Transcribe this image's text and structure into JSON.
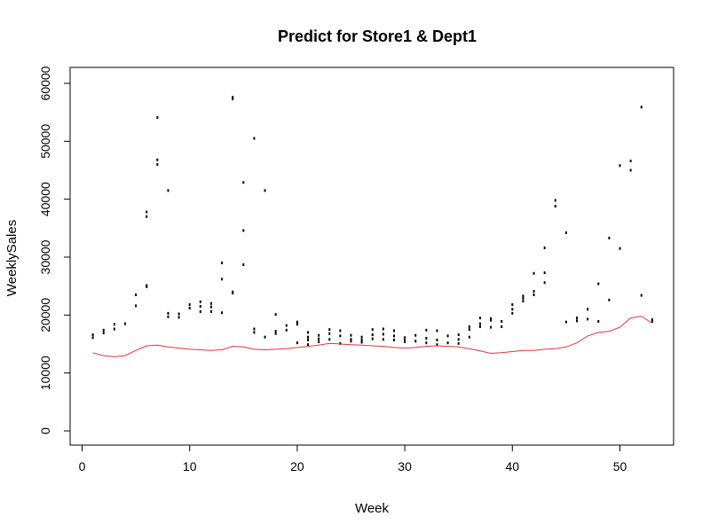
{
  "chart_data": {
    "type": "scatter",
    "title": "Predict for Store1 & Dept1",
    "xlabel": "Week",
    "ylabel": "WeeklySales",
    "xlim": [
      1,
      53
    ],
    "ylim": [
      0,
      60000
    ],
    "x_ticks": [
      0,
      10,
      20,
      30,
      40,
      50
    ],
    "y_ticks": [
      0,
      10000,
      20000,
      30000,
      40000,
      50000,
      60000
    ],
    "grid": false,
    "legend": "none",
    "point_color": "#000000",
    "line_color": "#e8323c",
    "points": [
      [
        1,
        16100
      ],
      [
        1,
        16600
      ],
      [
        2,
        16900
      ],
      [
        2,
        17400
      ],
      [
        3,
        17600
      ],
      [
        3,
        18400
      ],
      [
        4,
        18500
      ],
      [
        5,
        21600
      ],
      [
        5,
        23500
      ],
      [
        6,
        37000
      ],
      [
        6,
        37800
      ],
      [
        6,
        24900
      ],
      [
        6,
        25100
      ],
      [
        7,
        46000
      ],
      [
        7,
        46800
      ],
      [
        7,
        54100
      ],
      [
        8,
        41500
      ],
      [
        8,
        19700
      ],
      [
        8,
        20300
      ],
      [
        9,
        19600
      ],
      [
        9,
        20200
      ],
      [
        10,
        21200
      ],
      [
        10,
        21800
      ],
      [
        11,
        20600
      ],
      [
        11,
        21500
      ],
      [
        11,
        22300
      ],
      [
        12,
        20600
      ],
      [
        12,
        21400
      ],
      [
        12,
        22000
      ],
      [
        13,
        29000
      ],
      [
        13,
        26200
      ],
      [
        13,
        20400
      ],
      [
        14,
        57300
      ],
      [
        14,
        57600
      ],
      [
        14,
        23800
      ],
      [
        14,
        24000
      ],
      [
        15,
        42900
      ],
      [
        15,
        34600
      ],
      [
        15,
        28700
      ],
      [
        16,
        50500
      ],
      [
        16,
        17600
      ],
      [
        16,
        17000
      ],
      [
        17,
        41500
      ],
      [
        17,
        16200
      ],
      [
        18,
        20100
      ],
      [
        18,
        16800
      ],
      [
        18,
        17200
      ],
      [
        19,
        17400
      ],
      [
        19,
        18200
      ],
      [
        20,
        18400
      ],
      [
        20,
        18800
      ],
      [
        20,
        15200
      ],
      [
        21,
        17000
      ],
      [
        21,
        16200
      ],
      [
        21,
        15700
      ],
      [
        21,
        14900
      ],
      [
        22,
        16500
      ],
      [
        22,
        15900
      ],
      [
        22,
        15400
      ],
      [
        23,
        17500
      ],
      [
        23,
        16800
      ],
      [
        23,
        15800
      ],
      [
        24,
        17300
      ],
      [
        24,
        16400
      ],
      [
        24,
        15100
      ],
      [
        25,
        16500
      ],
      [
        25,
        15800
      ],
      [
        25,
        15500
      ],
      [
        26,
        16200
      ],
      [
        26,
        15700
      ],
      [
        26,
        15300
      ],
      [
        27,
        17500
      ],
      [
        27,
        16600
      ],
      [
        27,
        15900
      ],
      [
        28,
        17600
      ],
      [
        28,
        16700
      ],
      [
        28,
        15800
      ],
      [
        29,
        17300
      ],
      [
        29,
        16400
      ],
      [
        29,
        15700
      ],
      [
        30,
        16100
      ],
      [
        30,
        15600
      ],
      [
        30,
        15400
      ],
      [
        31,
        16500
      ],
      [
        31,
        15500
      ],
      [
        32,
        17400
      ],
      [
        32,
        16000
      ],
      [
        32,
        15200
      ],
      [
        33,
        17300
      ],
      [
        33,
        15700
      ],
      [
        33,
        14900
      ],
      [
        34,
        16400
      ],
      [
        34,
        15200
      ],
      [
        35,
        16600
      ],
      [
        35,
        15800
      ],
      [
        35,
        15100
      ],
      [
        36,
        18000
      ],
      [
        36,
        17500
      ],
      [
        36,
        16200
      ],
      [
        37,
        19500
      ],
      [
        37,
        18500
      ],
      [
        37,
        18000
      ],
      [
        38,
        19400
      ],
      [
        38,
        19100
      ],
      [
        38,
        17900
      ],
      [
        39,
        18900
      ],
      [
        39,
        18000
      ],
      [
        40,
        21800
      ],
      [
        40,
        21000
      ],
      [
        40,
        20300
      ],
      [
        41,
        23300
      ],
      [
        41,
        22900
      ],
      [
        41,
        22400
      ],
      [
        42,
        27200
      ],
      [
        42,
        24100
      ],
      [
        42,
        23500
      ],
      [
        43,
        31600
      ],
      [
        43,
        27300
      ],
      [
        43,
        25600
      ],
      [
        44,
        39800
      ],
      [
        44,
        38800
      ],
      [
        45,
        34200
      ],
      [
        45,
        18800
      ],
      [
        46,
        19500
      ],
      [
        46,
        19000
      ],
      [
        47,
        21000
      ],
      [
        47,
        19300
      ],
      [
        48,
        25400
      ],
      [
        48,
        18900
      ],
      [
        49,
        33300
      ],
      [
        49,
        22600
      ],
      [
        50,
        45800
      ],
      [
        50,
        31500
      ],
      [
        51,
        46600
      ],
      [
        51,
        45000
      ],
      [
        52,
        55900
      ],
      [
        52,
        23400
      ],
      [
        53,
        19200
      ],
      [
        53,
        18900
      ]
    ],
    "prediction_line": [
      [
        1,
        13500
      ],
      [
        2,
        13000
      ],
      [
        3,
        12800
      ],
      [
        4,
        13000
      ],
      [
        5,
        13900
      ],
      [
        6,
        14700
      ],
      [
        7,
        14800
      ],
      [
        8,
        14500
      ],
      [
        9,
        14300
      ],
      [
        10,
        14100
      ],
      [
        11,
        14000
      ],
      [
        12,
        13900
      ],
      [
        13,
        14000
      ],
      [
        14,
        14600
      ],
      [
        15,
        14500
      ],
      [
        16,
        14100
      ],
      [
        17,
        14000
      ],
      [
        18,
        14100
      ],
      [
        19,
        14200
      ],
      [
        20,
        14400
      ],
      [
        21,
        14600
      ],
      [
        22,
        14800
      ],
      [
        23,
        15100
      ],
      [
        24,
        15000
      ],
      [
        25,
        14900
      ],
      [
        26,
        14800
      ],
      [
        27,
        14700
      ],
      [
        28,
        14600
      ],
      [
        29,
        14400
      ],
      [
        30,
        14300
      ],
      [
        31,
        14400
      ],
      [
        32,
        14600
      ],
      [
        33,
        14700
      ],
      [
        34,
        14600
      ],
      [
        35,
        14500
      ],
      [
        36,
        14200
      ],
      [
        37,
        13800
      ],
      [
        38,
        13400
      ],
      [
        39,
        13500
      ],
      [
        40,
        13700
      ],
      [
        41,
        13900
      ],
      [
        42,
        13900
      ],
      [
        43,
        14100
      ],
      [
        44,
        14200
      ],
      [
        45,
        14500
      ],
      [
        46,
        15200
      ],
      [
        47,
        16400
      ],
      [
        48,
        17000
      ],
      [
        49,
        17200
      ],
      [
        50,
        17900
      ],
      [
        51,
        19500
      ],
      [
        52,
        19800
      ],
      [
        53,
        18600
      ]
    ]
  }
}
